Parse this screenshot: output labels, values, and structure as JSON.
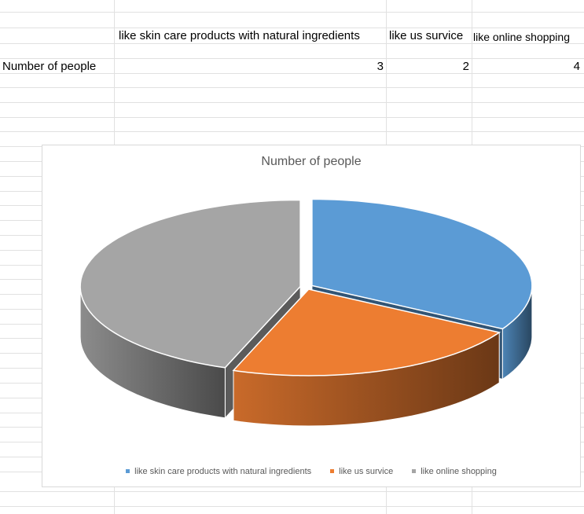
{
  "sheet": {
    "headers": [
      "like skin care products with natural ingredients",
      "like us  survice",
      "like online shopping"
    ],
    "row_label": "Number of people",
    "row_values": [
      3,
      2,
      4
    ]
  },
  "chart_data": {
    "type": "pie",
    "title": "Number of people",
    "three_d": true,
    "categories": [
      "like skin care products with natural ingredients",
      "like us  survice",
      "like online shopping"
    ],
    "values": [
      3,
      2,
      4
    ],
    "colors": [
      "#5b9bd5",
      "#ed7d31",
      "#a5a5a5"
    ],
    "legend_position": "bottom",
    "exploded": true
  }
}
